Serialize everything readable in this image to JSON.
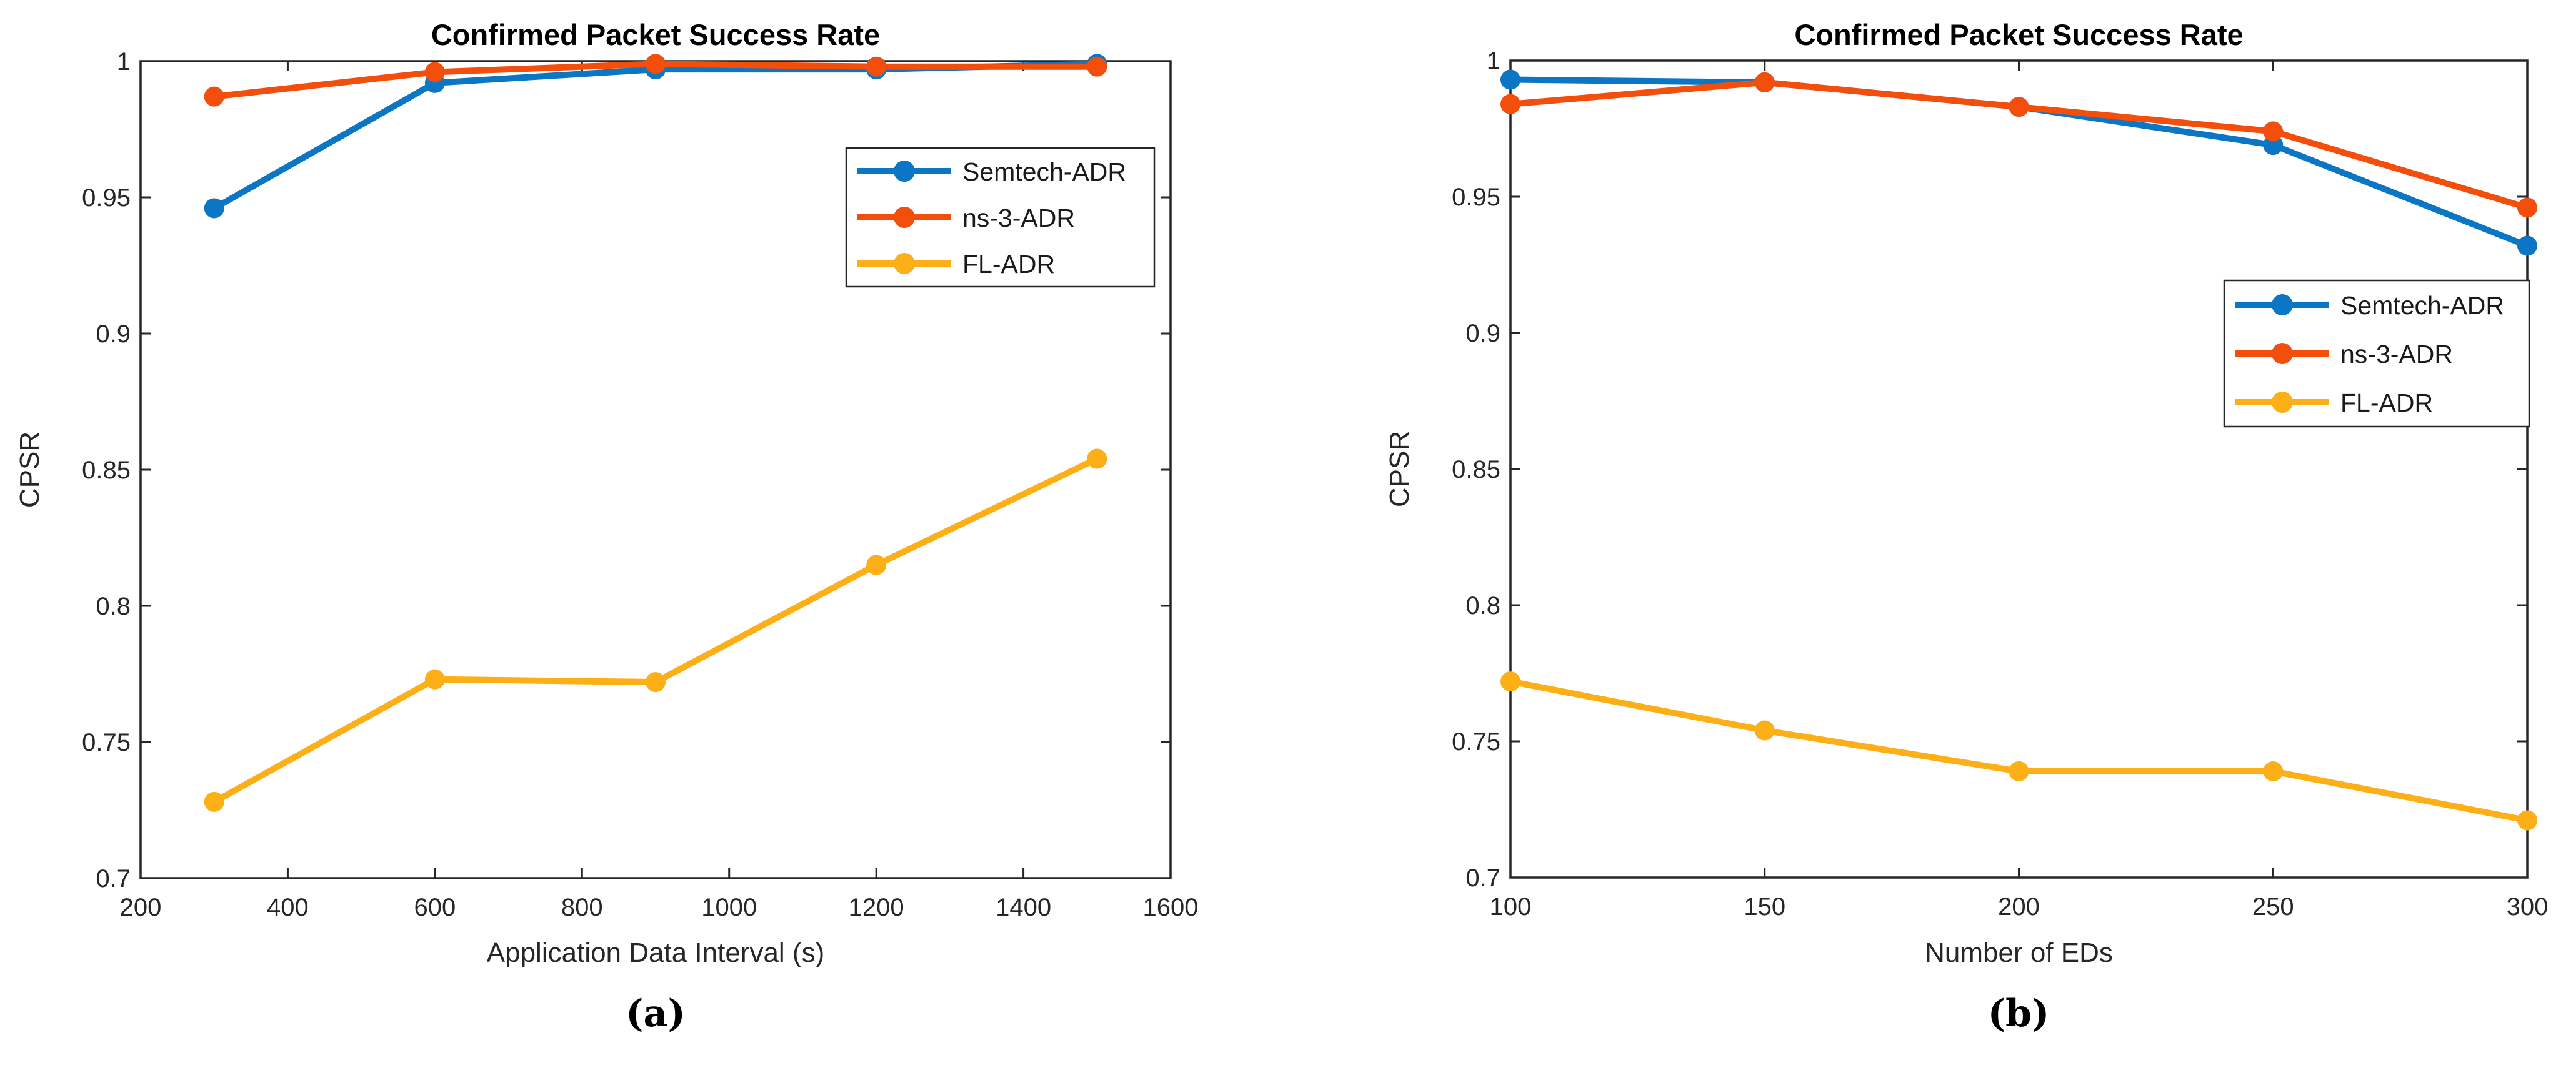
{
  "page": {
    "background": "#ffffff"
  },
  "colors": {
    "semtech_adr": "#0B77C4",
    "ns3_adr": "#F44E0D",
    "fl_adr": "#FCAF16",
    "axis": "#262626",
    "tick_label": "#262626",
    "title": "#000000",
    "legend_text": "#1a1a1a",
    "legend_bg": "#ffffff"
  },
  "chart_data": [
    {
      "id": "a",
      "type": "line",
      "title": "Confirmed Packet Success Rate",
      "xlabel": "Application Data Interval (s)",
      "ylabel": "CPSR",
      "caption": "(a)",
      "x": [
        300,
        600,
        900,
        1200,
        1500
      ],
      "xlim": [
        200,
        1600
      ],
      "xticks": [
        200,
        400,
        600,
        800,
        1000,
        1200,
        1400,
        1600
      ],
      "ylim": [
        0.7,
        1.0
      ],
      "yticks": [
        1,
        0.95,
        0.9,
        0.85,
        0.8,
        0.75,
        0.7
      ],
      "ytick_labels": [
        "1",
        "0.95",
        "0.9",
        "0.85",
        "0.8",
        "0.75",
        "0.7"
      ],
      "grid": false,
      "box": true,
      "legend_position": "inside-upper-right",
      "legend_entries": [
        "Semtech-ADR",
        "ns-3-ADR",
        "FL-ADR"
      ],
      "series": [
        {
          "name": "Semtech-ADR",
          "color_key": "semtech_adr",
          "values": [
            0.946,
            0.992,
            0.997,
            0.997,
            0.999
          ]
        },
        {
          "name": "ns-3-ADR",
          "color_key": "ns3_adr",
          "values": [
            0.987,
            0.996,
            0.999,
            0.998,
            0.998
          ]
        },
        {
          "name": "FL-ADR",
          "color_key": "fl_adr",
          "values": [
            0.728,
            0.773,
            0.772,
            0.815,
            0.854
          ]
        }
      ]
    },
    {
      "id": "b",
      "type": "line",
      "title": "Confirmed Packet Success Rate",
      "xlabel": "Number of EDs",
      "ylabel": "CPSR",
      "caption": "(b)",
      "x": [
        100,
        150,
        200,
        250,
        300
      ],
      "xlim": [
        100,
        300
      ],
      "xticks": [
        100,
        150,
        200,
        250,
        300
      ],
      "ylim": [
        0.7,
        1.0
      ],
      "yticks": [
        1,
        0.95,
        0.9,
        0.85,
        0.8,
        0.75,
        0.7
      ],
      "ytick_labels": [
        "1",
        "0.95",
        "0.9",
        "0.85",
        "0.8",
        "0.75",
        "0.7"
      ],
      "grid": false,
      "box": true,
      "legend_position": "inside-right-middle",
      "legend_entries": [
        "Semtech-ADR",
        "ns-3-ADR",
        "FL-ADR"
      ],
      "series": [
        {
          "name": "Semtech-ADR",
          "color_key": "semtech_adr",
          "values": [
            0.993,
            0.992,
            0.983,
            0.969,
            0.932
          ]
        },
        {
          "name": "ns-3-ADR",
          "color_key": "ns3_adr",
          "values": [
            0.984,
            0.992,
            0.983,
            0.974,
            0.946
          ]
        },
        {
          "name": "FL-ADR",
          "color_key": "fl_adr",
          "values": [
            0.772,
            0.754,
            0.739,
            0.739,
            0.721
          ]
        }
      ]
    }
  ]
}
